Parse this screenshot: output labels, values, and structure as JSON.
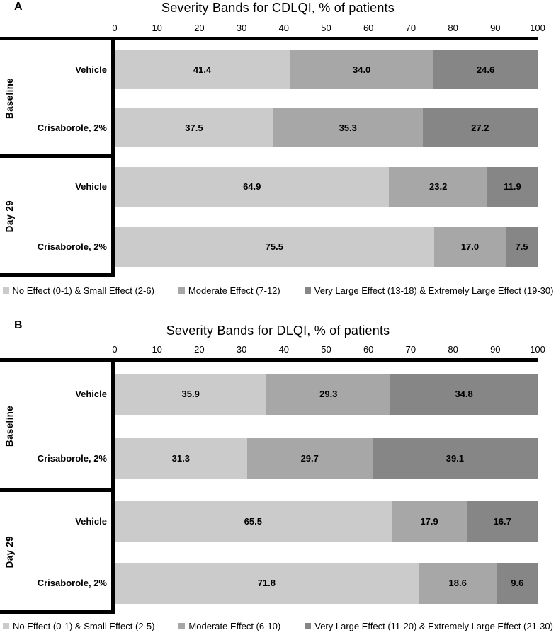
{
  "colors": {
    "seg1": "#cbcbcb",
    "seg2": "#a7a7a7",
    "seg3": "#868686",
    "axis": "#000000"
  },
  "panels": [
    {
      "letter": "A",
      "title": "Severity Bands for CDLQI, % of patients",
      "ticks": [
        "0",
        "10",
        "20",
        "30",
        "40",
        "50",
        "60",
        "70",
        "80",
        "90",
        "100"
      ],
      "groups": [
        {
          "label": "Baseline",
          "rows": [
            {
              "label": "Vehicle",
              "v": [
                41.4,
                34.0,
                24.6
              ],
              "d": [
                "41.4",
                "34.0",
                "24.6"
              ]
            },
            {
              "label": "Crisaborole, 2%",
              "v": [
                37.5,
                35.3,
                27.2
              ],
              "d": [
                "37.5",
                "35.3",
                "27.2"
              ]
            }
          ]
        },
        {
          "label": "Day 29",
          "rows": [
            {
              "label": "Vehicle",
              "v": [
                64.9,
                23.2,
                11.9
              ],
              "d": [
                "64.9",
                "23.2",
                "11.9"
              ]
            },
            {
              "label": "Crisaborole, 2%",
              "v": [
                75.5,
                17.0,
                7.5
              ],
              "d": [
                "75.5",
                "17.0",
                "7.5"
              ]
            }
          ]
        }
      ],
      "legend": [
        {
          "label": "No Effect (0-1) & Small Effect (2-6)"
        },
        {
          "label": "Moderate Effect (7-12)"
        },
        {
          "label": "Very Large Effect (13-18) & Extremely Large Effect (19-30)"
        }
      ]
    },
    {
      "letter": "B",
      "title": "Severity Bands for DLQI, % of patients",
      "ticks": [
        "0",
        "10",
        "20",
        "30",
        "40",
        "50",
        "60",
        "70",
        "80",
        "90",
        "100"
      ],
      "groups": [
        {
          "label": "Baseline",
          "rows": [
            {
              "label": "Vehicle",
              "v": [
                35.9,
                29.3,
                34.8
              ],
              "d": [
                "35.9",
                "29.3",
                "34.8"
              ]
            },
            {
              "label": "Crisaborole, 2%",
              "v": [
                31.3,
                29.7,
                39.1
              ],
              "d": [
                "31.3",
                "29.7",
                "39.1"
              ]
            }
          ]
        },
        {
          "label": "Day 29",
          "rows": [
            {
              "label": "Vehicle",
              "v": [
                65.5,
                17.9,
                16.7
              ],
              "d": [
                "65.5",
                "17.9",
                "16.7"
              ]
            },
            {
              "label": "Crisaborole, 2%",
              "v": [
                71.8,
                18.6,
                9.6
              ],
              "d": [
                "71.8",
                "18.6",
                "9.6"
              ]
            }
          ]
        }
      ],
      "legend": [
        {
          "label": "No Effect (0-1) & Small Effect (2-5)"
        },
        {
          "label": "Moderate Effect (6-10)"
        },
        {
          "label": "Very Large Effect (11-20) & Extremely Large Effect (21-30)"
        }
      ]
    }
  ],
  "chart_data": [
    {
      "type": "bar",
      "orientation": "horizontal",
      "stacked": true,
      "title": "Severity Bands for CDLQI, % of patients",
      "categories": [
        "Baseline - Vehicle",
        "Baseline - Crisaborole, 2%",
        "Day 29 - Vehicle",
        "Day 29 - Crisaborole, 2%"
      ],
      "series": [
        {
          "name": "No Effect (0-1) & Small Effect (2-6)",
          "color": "#cbcbcb",
          "values": [
            41.4,
            37.5,
            64.9,
            75.5
          ]
        },
        {
          "name": "Moderate Effect (7-12)",
          "color": "#a7a7a7",
          "values": [
            34.0,
            35.3,
            23.2,
            17.0
          ]
        },
        {
          "name": "Very Large Effect (13-18) & Extremely Large Effect (19-30)",
          "color": "#868686",
          "values": [
            24.6,
            27.2,
            11.9,
            7.5
          ]
        }
      ],
      "xlim": [
        0,
        100
      ],
      "x_ticks": [
        0,
        10,
        20,
        30,
        40,
        50,
        60,
        70,
        80,
        90,
        100
      ],
      "grid": false,
      "legend_position": "bottom",
      "data_labels": true
    },
    {
      "type": "bar",
      "orientation": "horizontal",
      "stacked": true,
      "title": "Severity Bands for DLQI, % of patients",
      "categories": [
        "Baseline - Vehicle",
        "Baseline - Crisaborole, 2%",
        "Day 29 - Vehicle",
        "Day 29 - Crisaborole, 2%"
      ],
      "series": [
        {
          "name": "No Effect (0-1) & Small Effect (2-5)",
          "color": "#cbcbcb",
          "values": [
            35.9,
            31.3,
            65.5,
            71.8
          ]
        },
        {
          "name": "Moderate Effect (6-10)",
          "color": "#a7a7a7",
          "values": [
            29.3,
            29.7,
            17.9,
            18.6
          ]
        },
        {
          "name": "Very Large Effect (11-20) & Extremely Large Effect (21-30)",
          "color": "#868686",
          "values": [
            34.8,
            39.1,
            16.7,
            9.6
          ]
        }
      ],
      "xlim": [
        0,
        100
      ],
      "x_ticks": [
        0,
        10,
        20,
        30,
        40,
        50,
        60,
        70,
        80,
        90,
        100
      ],
      "grid": false,
      "legend_position": "bottom",
      "data_labels": true
    }
  ]
}
